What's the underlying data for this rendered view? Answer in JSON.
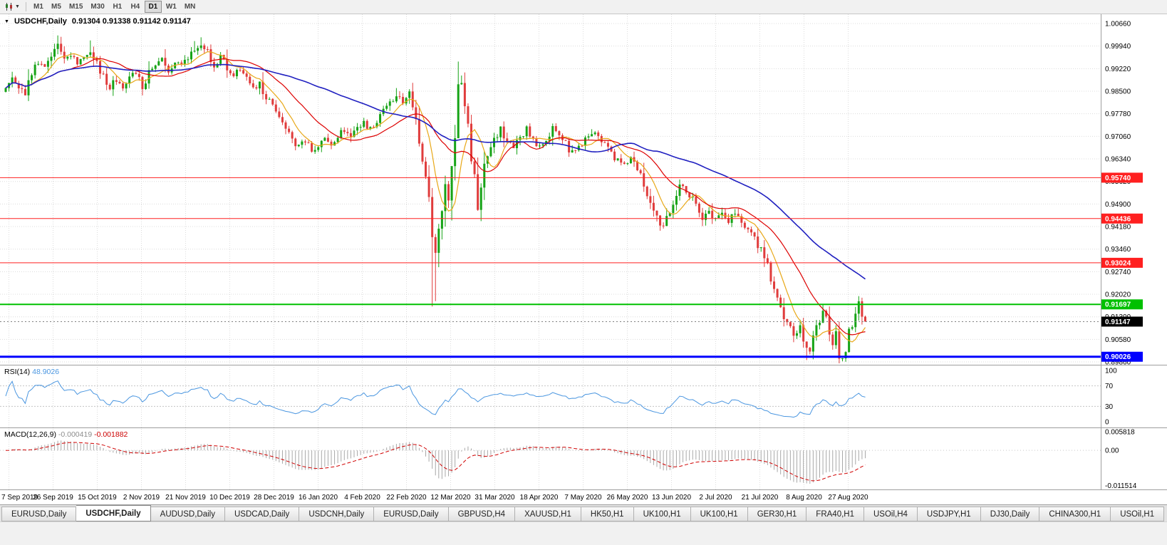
{
  "toolbar": {
    "timeframes": [
      "M1",
      "M5",
      "M15",
      "M30",
      "H1",
      "H4",
      "D1",
      "W1",
      "MN"
    ],
    "active_timeframe": "D1"
  },
  "chart": {
    "title_symbol": "USDCHF,Daily",
    "title_ohlc": "0.91304 0.91338 0.91142 0.91147",
    "colors": {
      "up": "#16A316",
      "down": "#E03C3C",
      "ma_fast": "#E8A818",
      "ma_mid": "#DD0000",
      "ma_slow": "#2020C0",
      "grid": "#DCDCDC",
      "rsi_line": "#4A96E0",
      "macd_hist": "#A8A8A8",
      "macd_signal": "#D00000",
      "level_red": "#FF2020",
      "level_green": "#00C000",
      "level_blue": "#0000FF",
      "current_badge": "#000000"
    },
    "y_axis_labels": [
      "1.00660",
      "0.99940",
      "0.99220",
      "0.98500",
      "0.97780",
      "0.97060",
      "0.96340",
      "0.95620",
      "0.94900",
      "0.94180",
      "0.93460",
      "0.92740",
      "0.92020",
      "0.91300",
      "0.90580",
      "0.89860"
    ],
    "x_axis_labels": [
      "7 Sep 2019",
      "26 Sep 2019",
      "15 Oct 2019",
      "2 Nov 2019",
      "21 Nov 2019",
      "10 Dec 2019",
      "28 Dec 2019",
      "16 Jan 2020",
      "4 Feb 2020",
      "22 Feb 2020",
      "12 Mar 2020",
      "31 Mar 2020",
      "18 Apr 2020",
      "7 May 2020",
      "26 May 2020",
      "13 Jun 2020",
      "2 Jul 2020",
      "21 Jul 2020",
      "8 Aug 2020",
      "27 Aug 2020"
    ],
    "h_lines": [
      {
        "price": 0.9574,
        "label": "0.95740",
        "color": "#FF2020",
        "width": 1
      },
      {
        "price": 0.94436,
        "label": "0.94436",
        "color": "#FF2020",
        "width": 1
      },
      {
        "price": 0.93024,
        "label": "0.93024",
        "color": "#FF2020",
        "width": 1
      },
      {
        "price": 0.91697,
        "label": "0.91697",
        "color": "#00C000",
        "width": 2
      },
      {
        "price": 0.90026,
        "label": "0.90026",
        "color": "#0000FF",
        "width": 3
      }
    ],
    "current_price": {
      "value": 0.91147,
      "label": "0.91147"
    },
    "last_candle": {
      "o": 0.91304,
      "h": 0.91338,
      "l": 0.91142,
      "c": 0.91147
    }
  },
  "chart_data": {
    "type": "candlestick",
    "symbol": "USDCHF",
    "timeframe": "Daily",
    "num_candles": 265,
    "ylim": [
      0.8977,
      1.0096
    ],
    "close_anchors": [
      [
        0,
        0.986
      ],
      [
        2,
        0.9895
      ],
      [
        4,
        0.9868
      ],
      [
        6,
        0.9838
      ],
      [
        8,
        0.9905
      ],
      [
        10,
        0.9945
      ],
      [
        12,
        0.9918
      ],
      [
        14,
        0.9962
      ],
      [
        16,
        0.999
      ],
      [
        18,
        0.9944
      ],
      [
        20,
        0.9974
      ],
      [
        22,
        0.993
      ],
      [
        24,
        0.9956
      ],
      [
        26,
        0.9978
      ],
      [
        28,
        0.9938
      ],
      [
        30,
        0.9898
      ],
      [
        32,
        0.9864
      ],
      [
        34,
        0.989
      ],
      [
        36,
        0.9858
      ],
      [
        38,
        0.9886
      ],
      [
        40,
        0.9912
      ],
      [
        42,
        0.9868
      ],
      [
        44,
        0.9904
      ],
      [
        46,
        0.993
      ],
      [
        48,
        0.995
      ],
      [
        50,
        0.9918
      ],
      [
        52,
        0.9944
      ],
      [
        54,
        0.9928
      ],
      [
        56,
        0.9958
      ],
      [
        58,
        0.9984
      ],
      [
        60,
        1.0
      ],
      [
        62,
        0.9974
      ],
      [
        64,
        0.9934
      ],
      [
        66,
        0.9958
      ],
      [
        68,
        0.9928
      ],
      [
        70,
        0.9904
      ],
      [
        72,
        0.9924
      ],
      [
        74,
        0.9888
      ],
      [
        76,
        0.9858
      ],
      [
        78,
        0.9874
      ],
      [
        80,
        0.9834
      ],
      [
        82,
        0.98
      ],
      [
        84,
        0.9768
      ],
      [
        86,
        0.972
      ],
      [
        88,
        0.9698
      ],
      [
        90,
        0.9668
      ],
      [
        92,
        0.969
      ],
      [
        94,
        0.9658
      ],
      [
        96,
        0.968
      ],
      [
        98,
        0.97
      ],
      [
        100,
        0.9684
      ],
      [
        102,
        0.971
      ],
      [
        104,
        0.9726
      ],
      [
        106,
        0.971
      ],
      [
        108,
        0.973
      ],
      [
        110,
        0.9746
      ],
      [
        112,
        0.973
      ],
      [
        114,
        0.976
      ],
      [
        116,
        0.9786
      ],
      [
        118,
        0.981
      ],
      [
        120,
        0.9836
      ],
      [
        122,
        0.982
      ],
      [
        124,
        0.985
      ],
      [
        125,
        0.9798
      ],
      [
        126,
        0.9744
      ],
      [
        127,
        0.9688
      ],
      [
        128,
        0.962
      ],
      [
        129,
        0.9558
      ],
      [
        130,
        0.9498
      ],
      [
        131,
        0.94
      ],
      [
        132,
        0.932
      ],
      [
        133,
        0.94
      ],
      [
        134,
        0.948
      ],
      [
        135,
        0.9558
      ],
      [
        136,
        0.9478
      ],
      [
        137,
        0.96
      ],
      [
        138,
        0.972
      ],
      [
        139,
        0.9848
      ],
      [
        140,
        0.9878
      ],
      [
        141,
        0.9798
      ],
      [
        142,
        0.972
      ],
      [
        143,
        0.965
      ],
      [
        144,
        0.9558
      ],
      [
        145,
        0.9498
      ],
      [
        146,
        0.9558
      ],
      [
        147,
        0.9618
      ],
      [
        148,
        0.9658
      ],
      [
        150,
        0.97
      ],
      [
        152,
        0.973
      ],
      [
        154,
        0.969
      ],
      [
        156,
        0.966
      ],
      [
        158,
        0.97
      ],
      [
        160,
        0.973
      ],
      [
        162,
        0.9698
      ],
      [
        164,
        0.9668
      ],
      [
        166,
        0.97
      ],
      [
        168,
        0.973
      ],
      [
        170,
        0.9708
      ],
      [
        172,
        0.968
      ],
      [
        174,
        0.965
      ],
      [
        176,
        0.967
      ],
      [
        178,
        0.97
      ],
      [
        180,
        0.972
      ],
      [
        182,
        0.9698
      ],
      [
        184,
        0.9678
      ],
      [
        186,
        0.965
      ],
      [
        188,
        0.963
      ],
      [
        190,
        0.961
      ],
      [
        192,
        0.964
      ],
      [
        194,
        0.9598
      ],
      [
        196,
        0.9558
      ],
      [
        198,
        0.9498
      ],
      [
        200,
        0.944
      ],
      [
        202,
        0.942
      ],
      [
        204,
        0.9468
      ],
      [
        206,
        0.9528
      ],
      [
        208,
        0.9558
      ],
      [
        210,
        0.952
      ],
      [
        212,
        0.948
      ],
      [
        214,
        0.945
      ],
      [
        216,
        0.947
      ],
      [
        218,
        0.944
      ],
      [
        220,
        0.946
      ],
      [
        222,
        0.944
      ],
      [
        224,
        0.9458
      ],
      [
        226,
        0.9438
      ],
      [
        228,
        0.941
      ],
      [
        230,
        0.938
      ],
      [
        232,
        0.9338
      ],
      [
        234,
        0.9288
      ],
      [
        236,
        0.923
      ],
      [
        238,
        0.9168
      ],
      [
        240,
        0.9108
      ],
      [
        242,
        0.9068
      ],
      [
        244,
        0.9098
      ],
      [
        246,
        0.9028
      ],
      [
        247,
        0.9008
      ],
      [
        248,
        0.9058
      ],
      [
        249,
        0.9098
      ],
      [
        250,
        0.9128
      ],
      [
        251,
        0.9158
      ],
      [
        252,
        0.9118
      ],
      [
        253,
        0.9078
      ],
      [
        254,
        0.9048
      ],
      [
        255,
        0.9088
      ],
      [
        256,
        0.9018
      ],
      [
        257,
        0.8998
      ],
      [
        258,
        0.9038
      ],
      [
        259,
        0.9078
      ],
      [
        260,
        0.9108
      ],
      [
        261,
        0.9138
      ],
      [
        262,
        0.9172
      ],
      [
        263,
        0.913
      ],
      [
        264,
        0.91147
      ]
    ],
    "wick_overrides": [
      {
        "d": 16,
        "high": 1.0028
      },
      {
        "d": 26,
        "high": 1.0012
      },
      {
        "d": 58,
        "high": 1.001
      },
      {
        "d": 60,
        "high": 1.0022
      },
      {
        "d": 120,
        "high": 0.986
      },
      {
        "d": 131,
        "low": 0.9163
      },
      {
        "d": 132,
        "low": 0.918
      },
      {
        "d": 139,
        "high": 0.9905
      },
      {
        "d": 140,
        "high": 0.99
      },
      {
        "d": 246,
        "low": 0.8992
      },
      {
        "d": 257,
        "low": 0.8988
      },
      {
        "d": 262,
        "high": 0.9196
      }
    ],
    "moving_averages": [
      {
        "period": 8,
        "color_key": "ma_fast",
        "width": 1.2
      },
      {
        "period": 21,
        "color_key": "ma_mid",
        "width": 1.2
      },
      {
        "period": 55,
        "color_key": "ma_slow",
        "width": 1.6
      }
    ]
  },
  "rsi": {
    "name": "RSI(14)",
    "value": "48.9026",
    "period": 14,
    "levels": [
      "100",
      "70",
      "30",
      "0"
    ],
    "level_values": [
      100,
      70,
      30,
      0
    ]
  },
  "macd": {
    "name": "MACD(12,26,9)",
    "main_value": "-0.000419",
    "signal_value": "-0.001882",
    "fast": 12,
    "slow": 26,
    "signal": 9,
    "axis_labels": [
      "0.005818",
      "0.00",
      "-0.011514"
    ],
    "axis_values": [
      0.005818,
      0,
      -0.011514
    ]
  },
  "tabs": {
    "items": [
      {
        "label": "EURUSD,Daily",
        "active": false
      },
      {
        "label": "USDCHF,Daily",
        "active": true
      },
      {
        "label": "AUDUSD,Daily",
        "active": false
      },
      {
        "label": "USDCAD,Daily",
        "active": false
      },
      {
        "label": "USDCNH,Daily",
        "active": false
      },
      {
        "label": "EURUSD,Daily",
        "active": false
      },
      {
        "label": "GBPUSD,H4",
        "active": false
      },
      {
        "label": "XAUUSD,H1",
        "active": false
      },
      {
        "label": "HK50,H1",
        "active": false
      },
      {
        "label": "UK100,H1",
        "active": false
      },
      {
        "label": "UK100,H1",
        "active": false
      },
      {
        "label": "GER30,H1",
        "active": false
      },
      {
        "label": "FRA40,H1",
        "active": false
      },
      {
        "label": "USOil,H4",
        "active": false
      },
      {
        "label": "USDJPY,H1",
        "active": false
      },
      {
        "label": "DJ30,Daily",
        "active": false
      },
      {
        "label": "CHINA300,H1",
        "active": false
      },
      {
        "label": "USOil,H1",
        "active": false
      }
    ]
  }
}
